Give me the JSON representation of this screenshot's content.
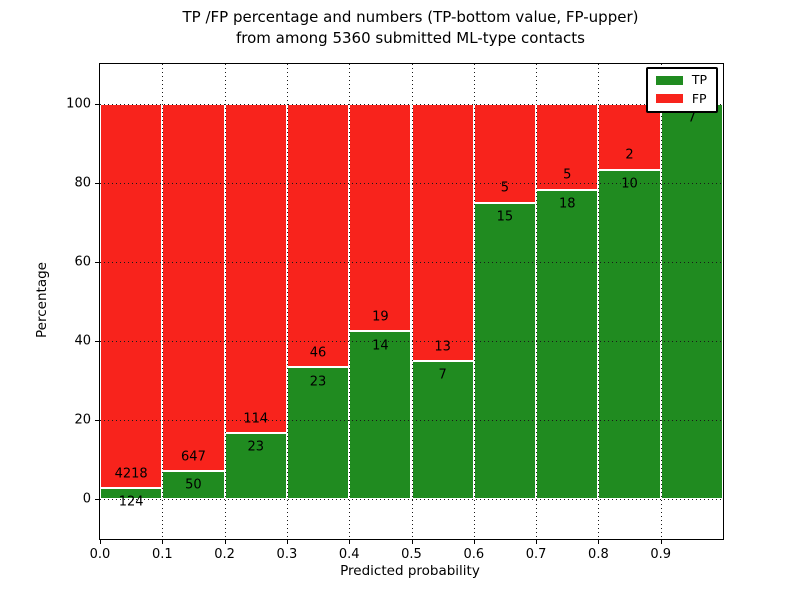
{
  "title": {
    "line1": "TP /FP percentage and numbers (TP-bottom value, FP-upper)",
    "line2": "from among 5360 submitted ML-type contacts"
  },
  "axes": {
    "ylabel": "Percentage",
    "xlabel": "Predicted probability",
    "yticks": [
      0,
      20,
      40,
      60,
      80,
      100
    ],
    "xticks": [
      "0.0",
      "0.1",
      "0.2",
      "0.3",
      "0.4",
      "0.5",
      "0.6",
      "0.7",
      "0.8",
      "0.9"
    ],
    "ylim": [
      -10,
      110
    ],
    "xlim": [
      0.0,
      1.0
    ]
  },
  "legend": {
    "items": [
      {
        "label": "TP",
        "color": "#208b20"
      },
      {
        "label": "FP",
        "color": "#f8231c"
      }
    ],
    "position": "upper right"
  },
  "chart_data": {
    "type": "bar",
    "stacked": true,
    "normalized_to_percent": true,
    "title": "TP /FP percentage and numbers (TP-bottom value, FP-upper) from among 5360 submitted ML-type contacts",
    "xlabel": "Predicted probability",
    "ylabel": "Percentage",
    "total_submitted": 5360,
    "bin_width": 0.1,
    "bins": [
      "0.0-0.1",
      "0.1-0.2",
      "0.2-0.3",
      "0.3-0.4",
      "0.4-0.5",
      "0.5-0.6",
      "0.6-0.7",
      "0.7-0.8",
      "0.8-0.9",
      "0.9-1.0"
    ],
    "bin_starts": [
      0.0,
      0.1,
      0.2,
      0.3,
      0.4,
      0.5,
      0.6,
      0.7,
      0.8,
      0.9
    ],
    "series": [
      {
        "name": "TP",
        "color": "#208b20",
        "counts": [
          124,
          50,
          23,
          23,
          14,
          7,
          15,
          18,
          10,
          7
        ]
      },
      {
        "name": "FP",
        "color": "#f8231c",
        "counts": [
          4218,
          647,
          114,
          46,
          19,
          13,
          5,
          5,
          2,
          0
        ]
      }
    ],
    "tp_percent": [
      2.86,
      7.17,
      16.79,
      33.33,
      42.42,
      35.0,
      75.0,
      78.26,
      83.33,
      100.0
    ],
    "grid": "dotted",
    "ylim": [
      -10,
      110
    ],
    "legend_position": "upper right"
  }
}
